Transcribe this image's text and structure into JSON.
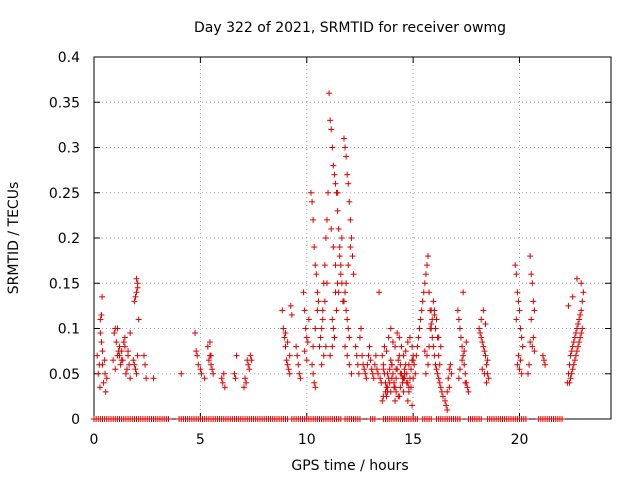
{
  "chart_data": {
    "type": "scatter",
    "title": "Day 322 of 2021, SRMTID for receiver owmg",
    "xlabel": "GPS time / hours",
    "ylabel": "SRMTID / TECUs",
    "xlim": [
      0,
      24.3
    ],
    "ylim": [
      0,
      0.4
    ],
    "x_ticks": [
      0,
      5,
      10,
      15,
      20
    ],
    "x_tick_labels": [
      "0",
      "5",
      "10",
      "15",
      "20"
    ],
    "y_ticks": [
      0,
      0.05,
      0.1,
      0.15,
      0.2,
      0.25,
      0.3,
      0.35,
      0.4
    ],
    "y_tick_labels": [
      "0",
      "0.05",
      "0.1",
      "0.15",
      "0.2",
      "0.25",
      "0.3",
      "0.35",
      "0.4"
    ],
    "grid": true,
    "marker": "+",
    "marker_color": "#dd0000",
    "grid_color": "#a0a0a0",
    "series": [
      {
        "name": "SRMTID",
        "x": [
          0.15,
          0.2,
          0.25,
          0.28,
          0.3,
          0.35,
          0.38,
          0.4,
          0.45,
          0.5,
          0.52,
          0.55,
          0.6,
          0.3,
          0.35,
          0.4,
          0.9,
          0.95,
          1.0,
          1.05,
          1.1,
          1.15,
          1.2,
          1.25,
          1.3,
          1.35,
          1.4,
          1.45,
          1.5,
          1.55,
          1.6,
          1.65,
          1.7,
          1.0,
          1.1,
          1.2,
          1.3,
          1.45,
          1.6,
          1.7,
          1.85,
          1.9,
          1.95,
          2.0,
          2.05,
          2.0,
          2.05,
          1.9,
          1.95,
          2.0,
          2.05,
          2.1,
          2.35,
          2.4,
          2.45,
          2.8,
          4.1,
          4.75,
          4.8,
          4.85,
          4.9,
          5.0,
          5.05,
          5.2,
          5.35,
          5.4,
          5.45,
          5.5,
          5.55,
          5.6,
          5.45,
          5.5,
          6.0,
          6.05,
          6.1,
          6.15,
          6.6,
          6.65,
          6.7,
          7.05,
          7.1,
          7.15,
          7.2,
          7.25,
          7.3,
          7.35,
          7.4,
          8.85,
          8.9,
          8.95,
          9.0,
          9.05,
          9.1,
          9.15,
          9.2,
          9.25,
          9.3,
          9.0,
          9.1,
          9.2,
          9.5,
          9.55,
          9.6,
          9.65,
          9.7,
          9.85,
          9.9,
          9.95,
          10.0,
          10.05,
          10.1,
          9.9,
          10.0,
          10.2,
          10.25,
          10.3,
          10.35,
          10.4,
          10.45,
          10.5,
          10.55,
          10.3,
          10.35,
          10.4,
          10.25,
          10.3,
          10.4,
          10.5,
          10.6,
          10.65,
          10.7,
          10.75,
          10.8,
          10.85,
          10.9,
          10.95,
          11.0,
          10.7,
          10.8,
          10.9,
          10.75,
          10.85,
          10.95,
          11.05,
          11.1,
          11.15,
          11.2,
          11.25,
          11.3,
          11.35,
          11.4,
          11.45,
          11.5,
          11.55,
          11.6,
          11.65,
          11.7,
          11.2,
          11.25,
          11.3,
          11.4,
          11.5,
          11.6,
          11.1,
          11.2,
          11.3,
          11.35,
          11.45,
          11.55,
          11.65,
          11.15,
          11.25,
          11.35,
          11.45,
          11.75,
          11.8,
          11.85,
          11.9,
          11.95,
          12.0,
          12.05,
          12.1,
          12.15,
          12.2,
          11.8,
          11.85,
          11.9,
          11.95,
          12.0,
          11.8,
          11.9,
          12.0,
          12.1,
          11.75,
          11.85,
          11.95,
          12.05,
          12.3,
          12.35,
          12.4,
          12.45,
          12.5,
          12.55,
          12.6,
          12.65,
          12.7,
          12.75,
          12.8,
          12.85,
          12.9,
          12.95,
          13.0,
          13.05,
          13.1,
          13.15,
          13.2,
          13.25,
          13.3,
          13.35,
          13.4,
          13.45,
          13.5,
          13.55,
          13.6,
          13.65,
          13.7,
          13.75,
          13.8,
          13.85,
          13.9,
          13.95,
          14.0,
          14.05,
          14.1,
          14.15,
          14.2,
          14.25,
          14.3,
          14.35,
          14.4,
          14.45,
          14.5,
          14.55,
          14.6,
          14.65,
          14.7,
          14.75,
          14.8,
          14.85,
          14.9,
          14.95,
          15.0,
          13.6,
          13.7,
          13.8,
          13.9,
          14.0,
          14.1,
          14.2,
          14.3,
          14.4,
          14.5,
          14.6,
          14.7,
          14.8,
          14.9,
          15.0,
          13.65,
          13.75,
          13.85,
          13.95,
          14.05,
          14.15,
          14.25,
          14.35,
          14.45,
          14.55,
          14.65,
          14.75,
          14.85,
          14.95,
          13.55,
          13.75,
          13.95,
          14.15,
          14.35,
          14.55,
          14.75,
          14.95,
          13.6,
          13.8,
          14.0,
          14.2,
          14.4,
          14.6,
          14.8,
          15.0,
          15.05,
          15.1,
          15.15,
          15.2,
          15.25,
          15.3,
          15.35,
          15.4,
          15.45,
          15.5,
          15.55,
          15.6,
          15.65,
          15.7,
          15.75,
          15.8,
          15.85,
          15.9,
          15.95,
          16.0,
          16.05,
          16.1,
          16.15,
          16.2,
          16.25,
          16.3,
          16.35,
          16.4,
          15.6,
          15.7,
          15.8,
          15.9,
          16.0,
          16.1,
          16.2,
          16.3,
          15.65,
          15.75,
          15.85,
          15.95,
          16.05,
          16.15,
          16.25,
          15.55,
          15.85,
          16.0,
          16.2,
          16.5,
          16.55,
          16.6,
          16.65,
          16.7,
          16.75,
          16.8,
          16.6,
          16.7,
          17.1,
          17.15,
          17.2,
          17.25,
          17.3,
          17.35,
          17.4,
          17.45,
          17.5,
          17.55,
          17.6,
          17.2,
          17.3,
          17.4,
          17.5,
          17.15,
          17.35,
          17.45,
          18.1,
          18.15,
          18.2,
          18.25,
          18.3,
          18.35,
          18.4,
          18.45,
          18.5,
          18.55,
          18.2,
          18.3,
          18.4,
          18.5,
          18.25,
          18.35,
          18.45,
          19.8,
          19.85,
          19.9,
          19.95,
          20.0,
          20.05,
          20.1,
          20.15,
          19.9,
          20.0,
          20.1,
          19.85,
          19.95,
          20.05,
          20.5,
          20.55,
          20.6,
          20.65,
          20.7,
          20.5,
          20.6,
          20.7,
          20.55,
          20.65,
          20.4,
          20.45,
          21.1,
          21.15,
          21.2,
          22.25,
          22.3,
          22.35,
          22.4,
          22.45,
          22.5,
          22.55,
          22.6,
          22.65,
          22.7,
          22.75,
          22.8,
          22.85,
          22.9,
          22.95,
          23.0,
          22.4,
          22.5,
          22.6,
          22.7,
          22.8,
          22.9,
          22.35,
          22.45,
          22.55,
          22.65,
          22.75,
          22.85,
          22.95,
          22.3,
          22.5,
          22.7,
          22.9
        ],
        "y": [
          0.07,
          0.05,
          0.06,
          0.035,
          0.095,
          0.115,
          0.135,
          0.06,
          0.04,
          0.065,
          0.05,
          0.03,
          0.045,
          0.11,
          0.085,
          0.075,
          0.065,
          0.095,
          0.1,
          0.085,
          0.07,
          0.075,
          0.08,
          0.06,
          0.075,
          0.065,
          0.085,
          0.09,
          0.05,
          0.055,
          0.07,
          0.06,
          0.045,
          0.055,
          0.1,
          0.07,
          0.065,
          0.08,
          0.075,
          0.095,
          0.065,
          0.06,
          0.055,
          0.05,
          0.07,
          0.14,
          0.15,
          0.13,
          0.135,
          0.155,
          0.145,
          0.11,
          0.07,
          0.06,
          0.045,
          0.045,
          0.05,
          0.095,
          0.075,
          0.07,
          0.06,
          0.055,
          0.05,
          0.045,
          0.08,
          0.065,
          0.07,
          0.06,
          0.055,
          0.05,
          0.085,
          0.07,
          0.045,
          0.04,
          0.05,
          0.035,
          0.05,
          0.045,
          0.07,
          0.035,
          0.045,
          0.04,
          0.065,
          0.06,
          0.055,
          0.07,
          0.065,
          0.12,
          0.1,
          0.09,
          0.08,
          0.065,
          0.06,
          0.055,
          0.05,
          0.125,
          0.115,
          0.095,
          0.085,
          0.07,
          0.08,
          0.07,
          0.06,
          0.05,
          0.045,
          0.14,
          0.12,
          0.1,
          0.09,
          0.085,
          0.11,
          0.075,
          0.065,
          0.25,
          0.24,
          0.22,
          0.19,
          0.17,
          0.16,
          0.14,
          0.13,
          0.05,
          0.04,
          0.035,
          0.06,
          0.08,
          0.1,
          0.12,
          0.08,
          0.09,
          0.1,
          0.12,
          0.15,
          0.17,
          0.2,
          0.22,
          0.25,
          0.06,
          0.07,
          0.08,
          0.11,
          0.13,
          0.15,
          0.36,
          0.33,
          0.32,
          0.3,
          0.28,
          0.27,
          0.26,
          0.25,
          0.23,
          0.21,
          0.19,
          0.17,
          0.15,
          0.13,
          0.11,
          0.1,
          0.09,
          0.12,
          0.14,
          0.16,
          0.07,
          0.08,
          0.09,
          0.14,
          0.15,
          0.18,
          0.2,
          0.21,
          0.19,
          0.17,
          0.25,
          0.31,
          0.3,
          0.29,
          0.27,
          0.26,
          0.24,
          0.22,
          0.2,
          0.18,
          0.16,
          0.14,
          0.12,
          0.11,
          0.1,
          0.09,
          0.08,
          0.07,
          0.06,
          0.05,
          0.13,
          0.15,
          0.17,
          0.19,
          0.08,
          0.07,
          0.06,
          0.05,
          0.09,
          0.1,
          0.07,
          0.06,
          0.055,
          0.05,
          0.045,
          0.06,
          0.07,
          0.08,
          0.065,
          0.055,
          0.05,
          0.045,
          0.06,
          0.07,
          0.055,
          0.05,
          0.14,
          0.045,
          0.04,
          0.07,
          0.06,
          0.05,
          0.04,
          0.035,
          0.03,
          0.045,
          0.055,
          0.065,
          0.06,
          0.05,
          0.04,
          0.035,
          0.045,
          0.055,
          0.065,
          0.07,
          0.06,
          0.05,
          0.04,
          0.045,
          0.055,
          0.06,
          0.05,
          0.04,
          0.035,
          0.045,
          0.055,
          0.065,
          0.07,
          0.025,
          0.03,
          0.035,
          0.04,
          0.045,
          0.035,
          0.03,
          0.025,
          0.035,
          0.045,
          0.05,
          0.04,
          0.03,
          0.035,
          0.045,
          0.08,
          0.075,
          0.09,
          0.1,
          0.085,
          0.08,
          0.095,
          0.09,
          0.08,
          0.07,
          0.075,
          0.085,
          0.09,
          0.08,
          0.02,
          0.025,
          0.03,
          0.02,
          0.025,
          0.03,
          0.02,
          0.015,
          0.055,
          0.05,
          0.06,
          0.055,
          0.05,
          0.045,
          0.06,
          0.065,
          0.06,
          0.05,
          0.07,
          0.08,
          0.09,
          0.1,
          0.11,
          0.12,
          0.13,
          0.14,
          0.15,
          0.16,
          0.17,
          0.18,
          0.14,
          0.12,
          0.1,
          0.09,
          0.08,
          0.07,
          0.06,
          0.055,
          0.05,
          0.045,
          0.04,
          0.035,
          0.03,
          0.025,
          0.05,
          0.06,
          0.1,
          0.11,
          0.12,
          0.11,
          0.09,
          0.08,
          0.07,
          0.08,
          0.12,
          0.13,
          0.1,
          0.09,
          0.06,
          0.075,
          0.105,
          0.115,
          0.07,
          0.02,
          0.015,
          0.03,
          0.045,
          0.055,
          0.06,
          0.05,
          0.01,
          0.035,
          0.12,
          0.11,
          0.1,
          0.09,
          0.08,
          0.07,
          0.06,
          0.05,
          0.04,
          0.035,
          0.03,
          0.055,
          0.065,
          0.075,
          0.085,
          0.045,
          0.14,
          0.04,
          0.1,
          0.095,
          0.09,
          0.085,
          0.08,
          0.075,
          0.07,
          0.06,
          0.05,
          0.045,
          0.11,
          0.12,
          0.105,
          0.065,
          0.055,
          0.05,
          0.04,
          0.17,
          0.16,
          0.14,
          0.13,
          0.12,
          0.1,
          0.09,
          0.08,
          0.06,
          0.055,
          0.05,
          0.11,
          0.07,
          0.065,
          0.18,
          0.16,
          0.15,
          0.13,
          0.12,
          0.085,
          0.08,
          0.075,
          0.11,
          0.09,
          0.05,
          0.06,
          0.07,
          0.065,
          0.06,
          0.04,
          0.05,
          0.06,
          0.07,
          0.075,
          0.08,
          0.085,
          0.09,
          0.095,
          0.1,
          0.105,
          0.11,
          0.115,
          0.12,
          0.13,
          0.14,
          0.045,
          0.055,
          0.065,
          0.075,
          0.085,
          0.095,
          0.04,
          0.05,
          0.06,
          0.07,
          0.08,
          0.09,
          0.1,
          0.125,
          0.135,
          0.155,
          0.15
        ]
      },
      {
        "name": "zero-level",
        "x_ranges": [
          [
            0.0,
            3.55
          ],
          [
            4.0,
            9.1
          ],
          [
            9.3,
            10.3
          ],
          [
            10.4,
            11.6
          ],
          [
            11.8,
            12.5
          ],
          [
            13.0,
            13.25
          ],
          [
            13.6,
            15.2
          ],
          [
            15.45,
            15.9
          ],
          [
            16.1,
            17.2
          ],
          [
            17.6,
            18.2
          ],
          [
            18.5,
            20.35
          ],
          [
            20.9,
            22.0
          ]
        ],
        "value": 0
      }
    ]
  }
}
